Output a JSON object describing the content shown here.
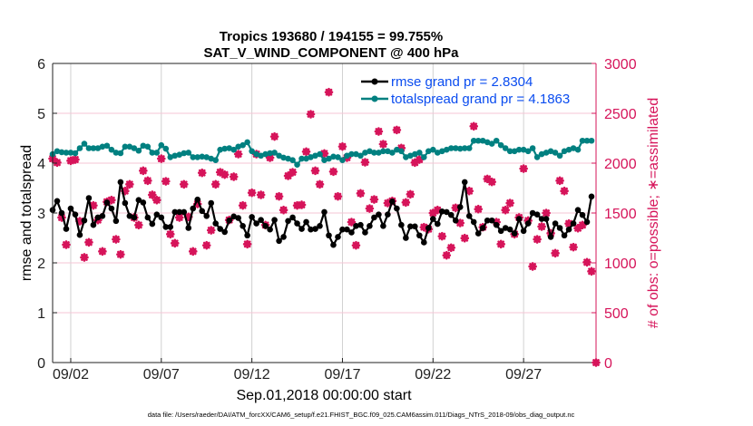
{
  "chart_data": {
    "type": "line",
    "title": [
      "Tropics 193680 / 194155 = 99.755%",
      "SAT_V_WIND_COMPONENT @ 400 hPa"
    ],
    "xlabel": "Sep.01,2018 00:00:00 start",
    "ylabel": "rmse and totalspread",
    "ylabel_right": "# of obs: o=possible; ∗=assimilated",
    "footer": "data file: /Users/raeder/DAI/ATM_forcXX/CAM6_setup/f.e21.FHIST_BGC.f09_025.CAM6assim.011/Diags_NTrS_2018-09/obs_diag_output.nc",
    "xlim": [
      "09/01 00",
      "10/01 00"
    ],
    "ylim": [
      0,
      6
    ],
    "ylim_right": [
      0,
      3000
    ],
    "xticks": [
      "09/02",
      "09/07",
      "09/12",
      "09/17",
      "09/22",
      "09/27"
    ],
    "yticks": [
      "0",
      "1",
      "2",
      "3",
      "4",
      "5",
      "6"
    ],
    "yticks_right": [
      "0",
      "500",
      "1000",
      "1500",
      "2000",
      "2500",
      "3000"
    ],
    "grid": true,
    "legend_position": "top-right",
    "colors": {
      "rmse": "#000000",
      "totalspread": "#008080",
      "obs": "#d6145a",
      "legend_text": "#0a4cf0",
      "grid_x": "#d0d0d0",
      "grid_y": "#f4c6d6"
    },
    "x": [
      "09/01 00",
      "09/01 06",
      "09/01 12",
      "09/01 18",
      "09/02 00",
      "09/02 06",
      "09/02 12",
      "09/02 18",
      "09/03 00",
      "09/03 06",
      "09/03 12",
      "09/03 18",
      "09/04 00",
      "09/04 06",
      "09/04 12",
      "09/04 18",
      "09/05 00",
      "09/05 06",
      "09/05 12",
      "09/05 18",
      "09/06 00",
      "09/06 06",
      "09/06 12",
      "09/06 18",
      "09/07 00",
      "09/07 06",
      "09/07 12",
      "09/07 18",
      "09/08 00",
      "09/08 06",
      "09/08 12",
      "09/08 18",
      "09/09 00",
      "09/09 06",
      "09/09 12",
      "09/09 18",
      "09/10 00",
      "09/10 06",
      "09/10 12",
      "09/10 18",
      "09/11 00",
      "09/11 06",
      "09/11 12",
      "09/11 18",
      "09/12 00",
      "09/12 06",
      "09/12 12",
      "09/12 18",
      "09/13 00",
      "09/13 06",
      "09/13 12",
      "09/13 18",
      "09/14 00",
      "09/14 06",
      "09/14 12",
      "09/14 18",
      "09/15 00",
      "09/15 06",
      "09/15 12",
      "09/15 18",
      "09/16 00",
      "09/16 06",
      "09/16 12",
      "09/16 18",
      "09/17 00",
      "09/17 06",
      "09/17 12",
      "09/17 18",
      "09/18 00",
      "09/18 06",
      "09/18 12",
      "09/18 18",
      "09/19 00",
      "09/19 06",
      "09/19 12",
      "09/19 18",
      "09/20 00",
      "09/20 06",
      "09/20 12",
      "09/20 18",
      "09/21 00",
      "09/21 06",
      "09/21 12",
      "09/21 18",
      "09/22 00",
      "09/22 06",
      "09/22 12",
      "09/22 18",
      "09/23 00",
      "09/23 06",
      "09/23 12",
      "09/23 18",
      "09/24 00",
      "09/24 06",
      "09/24 12",
      "09/24 18",
      "09/25 00",
      "09/25 06",
      "09/25 12",
      "09/25 18",
      "09/26 00",
      "09/26 06",
      "09/26 12",
      "09/26 18",
      "09/27 00",
      "09/27 06",
      "09/27 12",
      "09/27 18",
      "09/28 00",
      "09/28 06",
      "09/28 12",
      "09/28 18",
      "09/29 00",
      "09/29 06",
      "09/29 12",
      "09/29 18",
      "09/30 00",
      "09/30 06",
      "09/30 12",
      "09/30 18",
      "10/01 00"
    ],
    "series": [
      {
        "name": "rmse grand pr = 2.8304",
        "marker": "circle",
        "values": [
          3.06,
          3.24,
          3.0,
          2.68,
          3.09,
          2.97,
          2.56,
          2.85,
          3.3,
          2.76,
          2.91,
          2.94,
          3.21,
          3.09,
          2.84,
          3.62,
          3.2,
          2.94,
          2.91,
          3.26,
          3.21,
          2.91,
          2.78,
          2.97,
          2.91,
          2.72,
          2.72,
          3.02,
          3.02,
          3.02,
          2.7,
          3.09,
          3.27,
          3.04,
          2.94,
          3.2,
          2.79,
          2.68,
          2.62,
          2.85,
          2.93,
          2.9,
          2.74,
          2.55,
          2.92,
          2.79,
          2.86,
          2.74,
          2.67,
          2.86,
          2.44,
          2.52,
          2.84,
          2.91,
          2.79,
          2.68,
          2.82,
          2.67,
          2.68,
          2.74,
          3.02,
          2.55,
          2.36,
          2.52,
          2.67,
          2.67,
          2.61,
          2.74,
          2.76,
          2.61,
          2.74,
          2.91,
          2.97,
          2.74,
          2.97,
          3.23,
          3.09,
          2.76,
          2.5,
          2.73,
          2.73,
          2.55,
          2.41,
          2.7,
          2.88,
          2.78,
          3.03,
          3.02,
          2.96,
          2.85,
          3.12,
          3.62,
          2.94,
          2.82,
          2.59,
          2.7,
          2.85,
          2.85,
          2.76,
          2.64,
          2.7,
          2.67,
          2.59,
          2.88,
          2.64,
          2.79,
          3.0,
          2.97,
          2.88,
          2.88,
          2.52,
          2.79,
          2.7,
          2.55,
          2.67,
          2.79,
          3.06,
          2.96,
          2.82,
          3.33,
          null
        ]
      },
      {
        "name": "totalspread grand pr = 4.1863",
        "marker": "circle",
        "values": [
          4.18,
          4.24,
          4.22,
          4.21,
          4.21,
          4.2,
          4.3,
          4.39,
          4.3,
          4.3,
          4.3,
          4.33,
          4.35,
          4.27,
          4.21,
          4.2,
          4.33,
          4.33,
          4.3,
          4.25,
          4.35,
          4.33,
          4.21,
          4.21,
          4.36,
          4.29,
          4.12,
          4.15,
          4.17,
          4.2,
          4.21,
          4.12,
          4.12,
          4.13,
          4.12,
          4.09,
          4.06,
          4.27,
          4.29,
          4.3,
          4.27,
          4.33,
          4.36,
          4.42,
          4.24,
          4.18,
          4.15,
          4.18,
          4.2,
          4.21,
          4.15,
          4.11,
          4.09,
          4.06,
          3.97,
          4.09,
          4.09,
          4.12,
          4.15,
          4.18,
          4.06,
          4.09,
          4.13,
          4.12,
          4.06,
          4.15,
          4.18,
          4.18,
          4.15,
          4.21,
          4.24,
          4.21,
          4.21,
          4.24,
          4.24,
          4.21,
          4.27,
          4.24,
          4.12,
          4.15,
          4.18,
          4.21,
          4.12,
          4.24,
          4.27,
          4.21,
          4.24,
          4.27,
          4.3,
          4.3,
          4.29,
          4.3,
          4.3,
          4.45,
          4.45,
          4.45,
          4.42,
          4.39,
          4.45,
          4.36,
          4.3,
          4.24,
          4.24,
          4.27,
          4.27,
          4.24,
          4.3,
          4.12,
          4.18,
          4.21,
          4.24,
          4.21,
          4.15,
          4.24,
          4.27,
          4.3,
          4.27,
          4.45,
          4.45,
          4.45,
          null
        ]
      },
      {
        "name": "# of obs assimilated",
        "axis": "right",
        "marker": "asterisk",
        "values": [
          2045,
          2006,
          1455,
          1182,
          2024,
          2036,
          1418,
          1055,
          1206,
          1576,
          1430,
          1115,
          1612,
          1630,
          1236,
          1085,
          1721,
          1788,
          1455,
          1379,
          1924,
          1824,
          1682,
          1630,
          2045,
          1818,
          1288,
          1197,
          1455,
          1788,
          1461,
          1115,
          1591,
          1903,
          1176,
          1327,
          1788,
          1909,
          1885,
          1430,
          1864,
          2091,
          1576,
          1188,
          1703,
          2091,
          1682,
          1379,
          2055,
          2267,
          1667,
          1530,
          1873,
          1909,
          1576,
          1582,
          2115,
          2491,
          1924,
          1788,
          2097,
          2712,
          1915,
          1667,
          2167,
          2055,
          1409,
          1176,
          1697,
          2009,
          1545,
          1636,
          2318,
          2191,
          1600,
          1621,
          2333,
          2152,
          1606,
          1688,
          2006,
          2036,
          1358,
          1339,
          1500,
          1530,
          1267,
          1076,
          1152,
          1552,
          1400,
          1248,
          1721,
          2370,
          1539,
          1358,
          1842,
          1812,
          1409,
          1188,
          1530,
          1600,
          1288,
          1455,
          1945,
          1424,
          964,
          1236,
          1364,
          1500,
          1297,
          1097,
          1824,
          1721,
          1394,
          1158,
          1348,
          1379,
          1006,
          915,
          0
        ]
      }
    ]
  }
}
